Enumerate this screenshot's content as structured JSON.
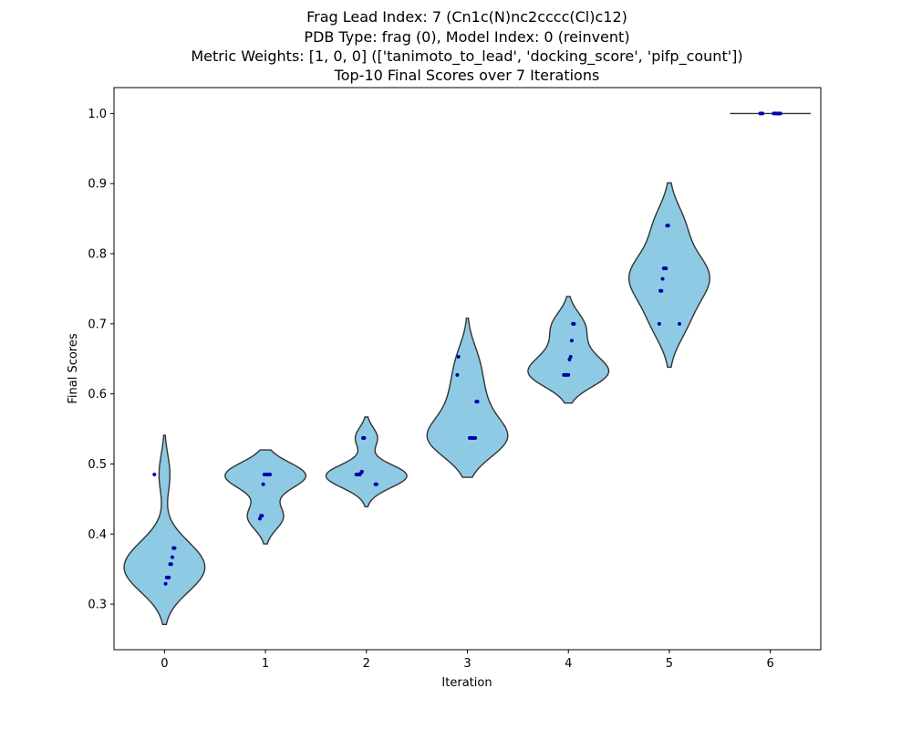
{
  "chart_data": {
    "type": "violin",
    "title_lines": [
      "Frag Lead Index: 7 (Cn1c(N)nc2cccc(Cl)c12)",
      "PDB Type: frag (0), Model Index: 0 (reinvent)",
      "Metric Weights: [1, 0, 0] (['tanimoto_to_lead', 'docking_score', 'pifp_count'])",
      "Top-10 Final Scores over 7 Iterations"
    ],
    "xlabel": "Iteration",
    "ylabel": "Final Scores",
    "categories": [
      "0",
      "1",
      "2",
      "3",
      "4",
      "5",
      "6"
    ],
    "ylim": [
      0.235,
      1.037
    ],
    "yticks": [
      0.3,
      0.4,
      0.5,
      0.6,
      0.7,
      0.8,
      0.9,
      1.0
    ],
    "ytick_labels": [
      "0.3",
      "0.4",
      "0.5",
      "0.6",
      "0.7",
      "0.8",
      "0.9",
      "1.0"
    ],
    "violin_color": "#8ecae3",
    "violin_edge_color": "#333333",
    "point_color": "#0000aa",
    "groups": [
      {
        "iteration": "0",
        "values": [
          0.485,
          0.38,
          0.38,
          0.367,
          0.357,
          0.357,
          0.338,
          0.338,
          0.338,
          0.329
        ],
        "range": [
          0.271,
          0.541
        ]
      },
      {
        "iteration": "1",
        "values": [
          0.485,
          0.485,
          0.485,
          0.485,
          0.485,
          0.485,
          0.471,
          0.426,
          0.426,
          0.422
        ],
        "range": [
          0.386,
          0.52
        ]
      },
      {
        "iteration": "2",
        "values": [
          0.537,
          0.537,
          0.489,
          0.487,
          0.485,
          0.485,
          0.485,
          0.485,
          0.471,
          0.471
        ],
        "range": [
          0.439,
          0.567
        ]
      },
      {
        "iteration": "3",
        "values": [
          0.653,
          0.627,
          0.589,
          0.589,
          0.537,
          0.537,
          0.537,
          0.537,
          0.537,
          0.537
        ],
        "range": [
          0.481,
          0.708
        ]
      },
      {
        "iteration": "4",
        "values": [
          0.7,
          0.7,
          0.676,
          0.653,
          0.649,
          0.627,
          0.627,
          0.627,
          0.627,
          0.627
        ],
        "range": [
          0.587,
          0.739
        ]
      },
      {
        "iteration": "5",
        "values": [
          0.84,
          0.84,
          0.779,
          0.779,
          0.779,
          0.764,
          0.747,
          0.747,
          0.7,
          0.7
        ],
        "range": [
          0.638,
          0.901
        ]
      },
      {
        "iteration": "6",
        "values": [
          1.0,
          1.0,
          1.0,
          1.0,
          1.0,
          1.0,
          1.0,
          1.0,
          1.0,
          1.0
        ],
        "range": [
          1.0,
          1.0
        ]
      }
    ]
  }
}
